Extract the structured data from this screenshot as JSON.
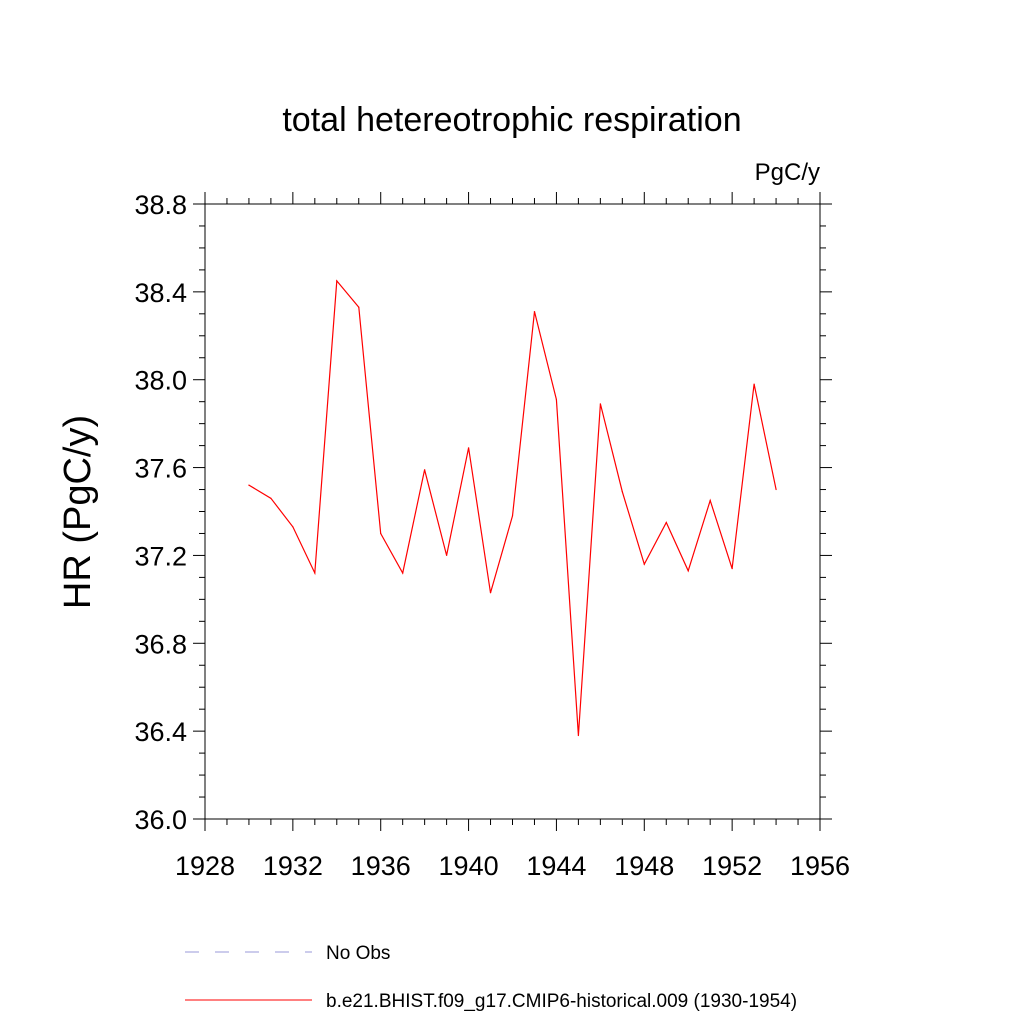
{
  "chart_data": {
    "type": "line",
    "title": "total hetereotrophic respiration",
    "units": "PgC/y",
    "ylabel": "HR  (PgC/y)",
    "xlabel": "",
    "xlim": [
      1928,
      1956
    ],
    "ylim": [
      36.0,
      38.8
    ],
    "xticks": [
      1928,
      1932,
      1936,
      1940,
      1944,
      1948,
      1952,
      1956
    ],
    "yticks": [
      36.0,
      36.4,
      36.8,
      37.2,
      37.6,
      38.0,
      38.4,
      38.8
    ],
    "xtick_labels": [
      "1928",
      "1932",
      "1936",
      "1940",
      "1944",
      "1948",
      "1952",
      "1956"
    ],
    "ytick_labels": [
      "36.0",
      "36.4",
      "36.8",
      "37.2",
      "37.6",
      "38.0",
      "38.4",
      "38.8"
    ],
    "grid": false,
    "legend_position": "bottom",
    "series": [
      {
        "name": "No Obs",
        "color": "#9a9ad8",
        "dash": "dashed",
        "x": [],
        "y": []
      },
      {
        "name": "b.e21.BHIST.f09_g17.CMIP6-historical.009 (1930-1954)",
        "color": "#ff0000",
        "dash": "solid",
        "x": [
          1930,
          1931,
          1932,
          1933,
          1934,
          1935,
          1936,
          1937,
          1938,
          1939,
          1940,
          1941,
          1942,
          1943,
          1944,
          1945,
          1946,
          1947,
          1948,
          1949,
          1950,
          1951,
          1952,
          1953,
          1954
        ],
        "y": [
          37.52,
          37.46,
          37.33,
          37.12,
          38.45,
          38.33,
          37.3,
          37.12,
          37.59,
          37.2,
          37.69,
          37.03,
          37.38,
          38.31,
          37.91,
          36.38,
          37.89,
          37.49,
          37.16,
          37.35,
          37.13,
          37.45,
          37.14,
          37.98,
          37.5
        ]
      }
    ]
  }
}
